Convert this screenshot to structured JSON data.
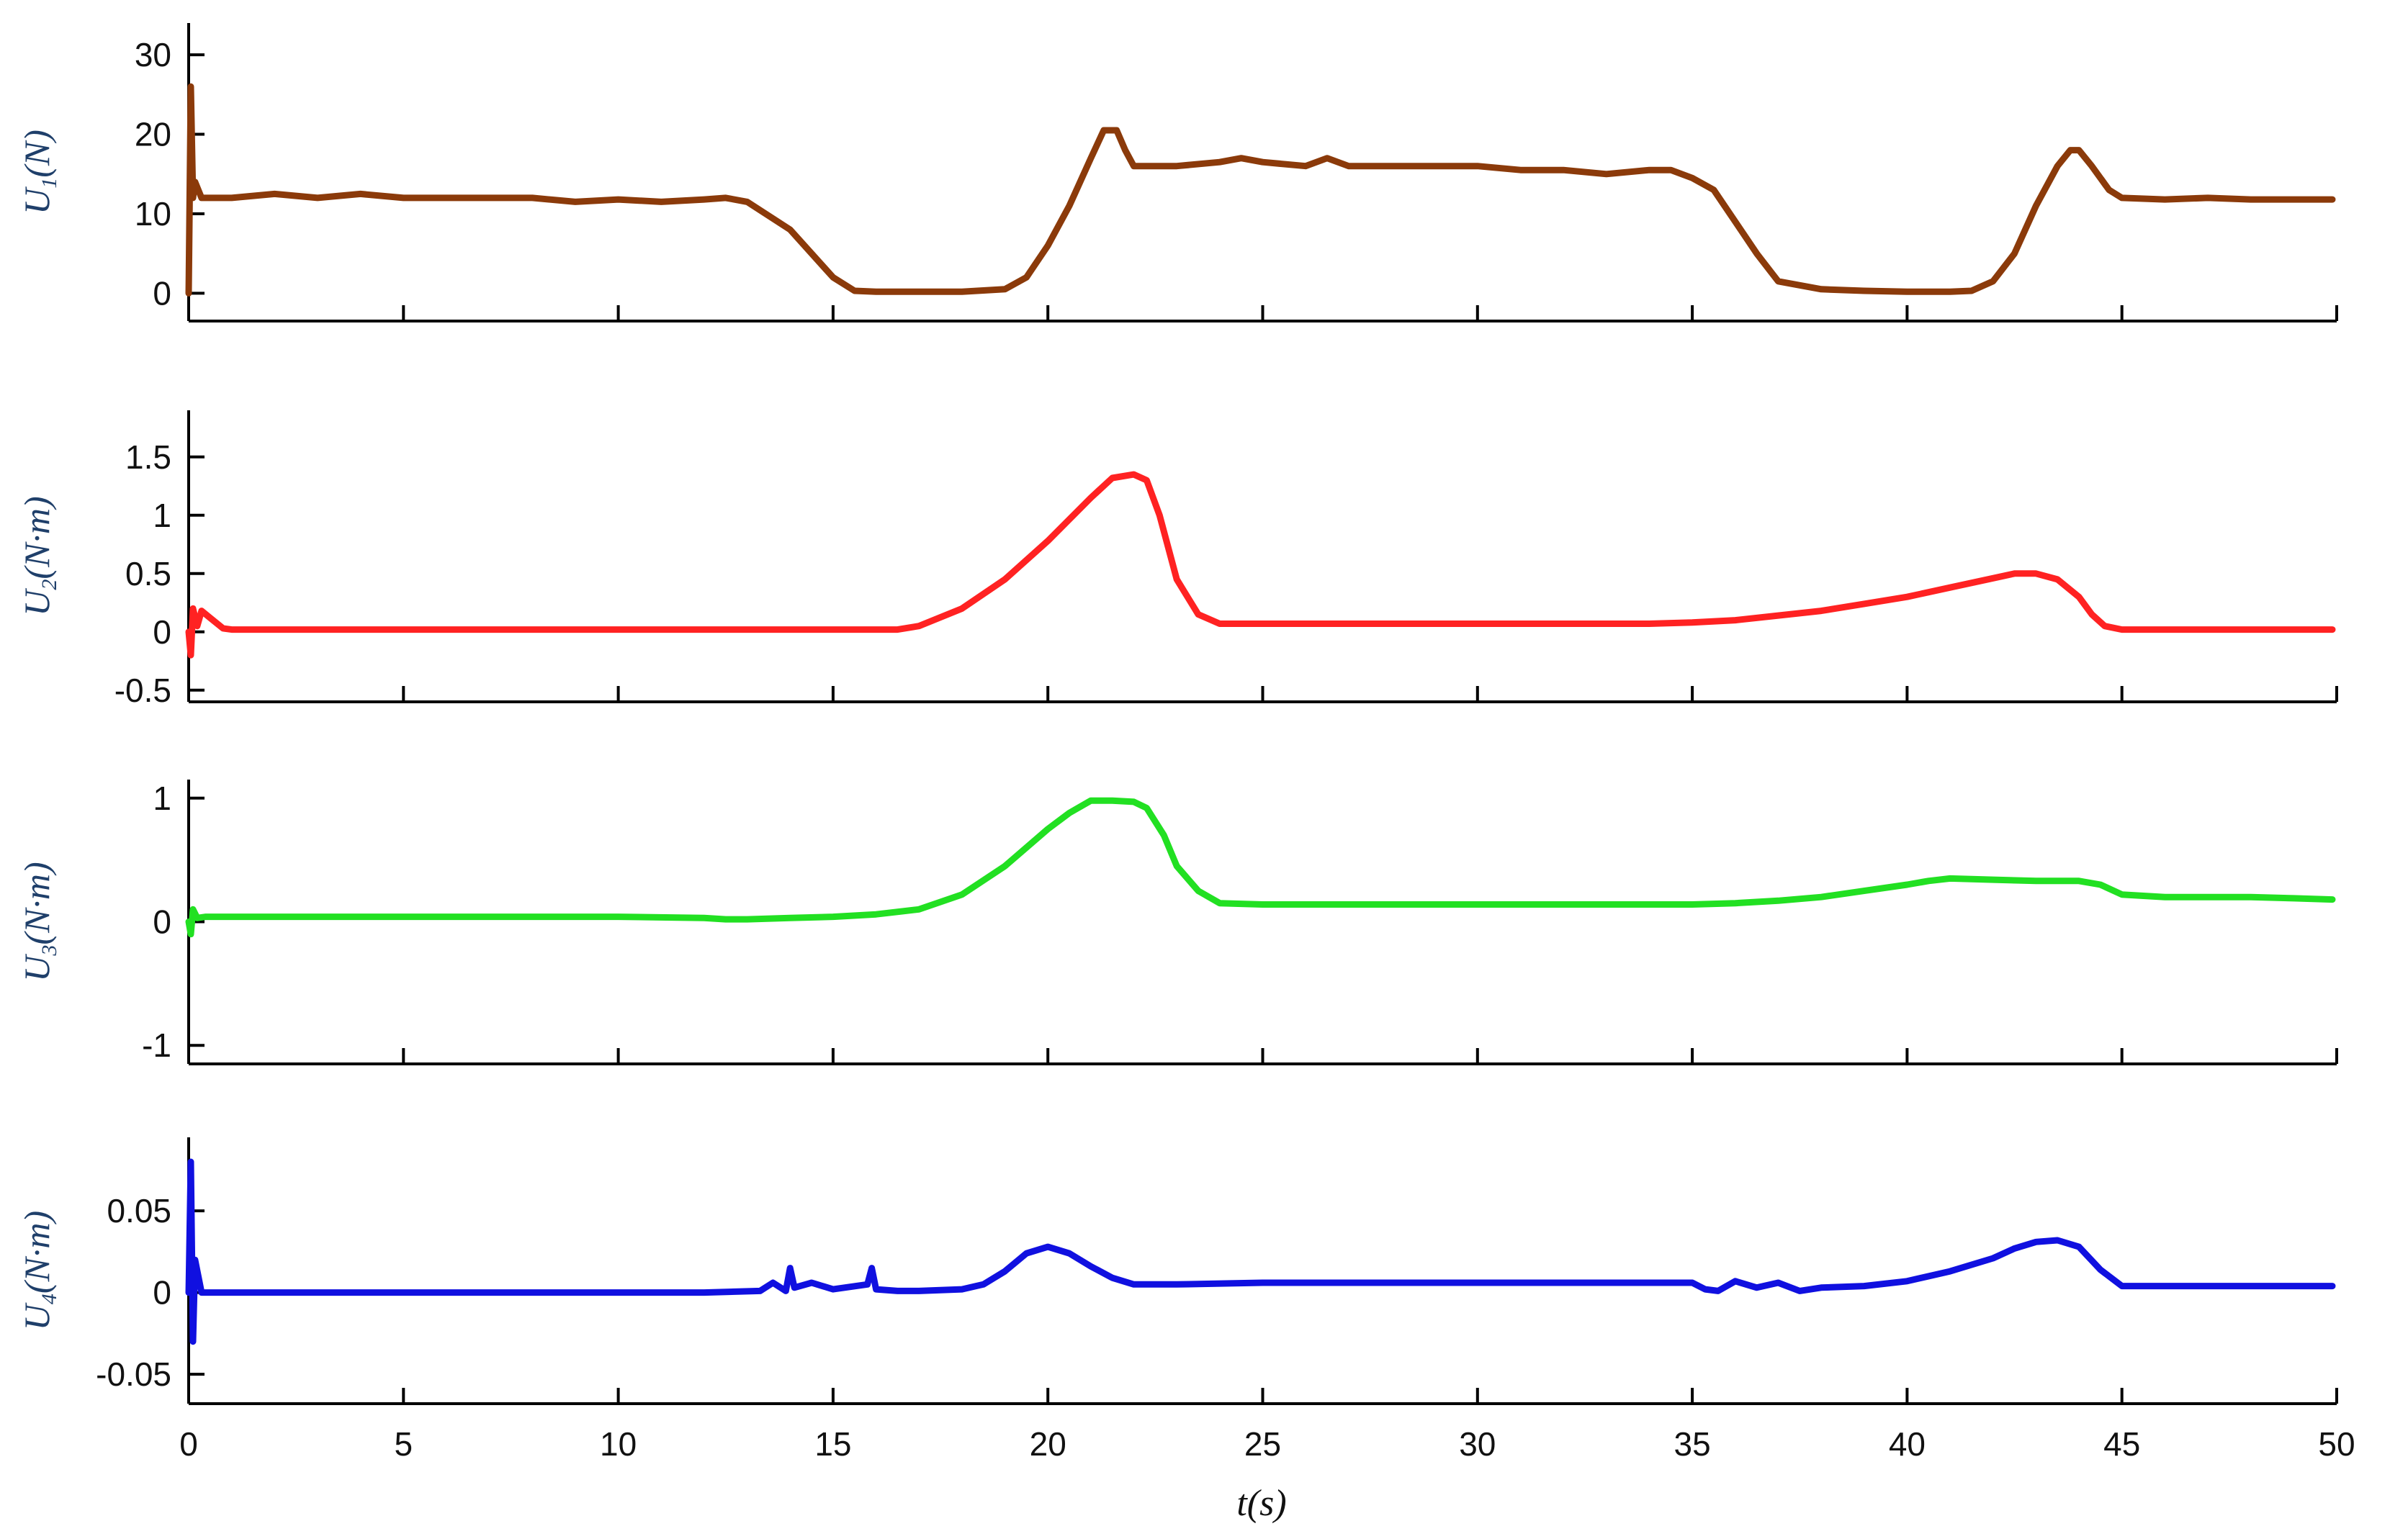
{
  "chart_data": [
    {
      "type": "line",
      "ylabel": "U1(N)",
      "ylabel_main": "U",
      "ylabel_sub": "1",
      "ylabel_unit": "(N)",
      "ylim": [
        -3.5,
        34
      ],
      "yticks": [
        0,
        10,
        20,
        30
      ],
      "ytick_labels": [
        "0",
        "10",
        "20",
        "30"
      ],
      "xlim": [
        0,
        50
      ],
      "color": "#8B3A0A",
      "x": [
        0,
        0.05,
        0.1,
        0.15,
        0.3,
        1,
        2,
        3,
        4,
        5,
        6,
        7,
        8,
        9,
        10,
        11,
        12,
        12.5,
        13,
        14,
        15,
        15.5,
        16,
        17,
        18,
        19,
        19.5,
        20,
        20.5,
        21,
        21.3,
        21.6,
        21.8,
        22,
        23,
        24,
        24.5,
        25,
        26,
        26.5,
        27,
        28,
        29,
        30,
        31,
        32,
        33,
        34,
        34.5,
        35,
        35.5,
        36,
        36.5,
        37,
        38,
        39,
        40,
        41,
        41.5,
        42,
        42.5,
        43,
        43.5,
        43.8,
        44,
        44.3,
        44.7,
        45,
        46,
        47,
        48,
        49,
        49.9
      ],
      "y": [
        0,
        26,
        12,
        14,
        12,
        12,
        12.5,
        12,
        12.5,
        12,
        12,
        12,
        12,
        11.5,
        11.8,
        11.5,
        11.8,
        12,
        11.5,
        8,
        2,
        0.3,
        0.2,
        0.2,
        0.2,
        0.5,
        2,
        6,
        11,
        17,
        20.5,
        20.5,
        18,
        16,
        16,
        16.5,
        17,
        16.5,
        16,
        17,
        16,
        16,
        16,
        16,
        15.5,
        15.5,
        15,
        15.5,
        15.5,
        14.5,
        13,
        9,
        5,
        1.5,
        0.5,
        0.3,
        0.2,
        0.2,
        0.3,
        1.5,
        5,
        11,
        16,
        18,
        18,
        16,
        13,
        12,
        11.8,
        12,
        11.8,
        11.8,
        11.8
      ]
    },
    {
      "type": "line",
      "ylabel": "U2(N·m)",
      "ylabel_main": "U",
      "ylabel_sub": "2",
      "ylabel_unit": "(N·m)",
      "ylim": [
        -0.6,
        1.9
      ],
      "yticks": [
        -0.5,
        0,
        0.5,
        1,
        1.5
      ],
      "ytick_labels": [
        "-0.5",
        "0",
        "0.5",
        "1",
        "1.5"
      ],
      "xlim": [
        0,
        50
      ],
      "color": "#FF2222",
      "x": [
        0,
        0.05,
        0.1,
        0.2,
        0.3,
        0.5,
        0.8,
        1,
        2,
        4,
        6,
        8,
        10,
        12,
        14,
        16,
        16.5,
        17,
        18,
        19,
        20,
        21,
        21.5,
        22,
        22.3,
        22.6,
        23,
        23.5,
        24,
        25,
        26,
        28,
        30,
        32,
        34,
        35,
        36,
        37,
        38,
        39,
        40,
        41,
        42,
        42.5,
        43,
        43.5,
        44,
        44.3,
        44.6,
        45,
        46,
        48,
        49.9
      ],
      "y": [
        0,
        -0.2,
        0.2,
        0.05,
        0.18,
        0.12,
        0.03,
        0.02,
        0.02,
        0.02,
        0.02,
        0.02,
        0.02,
        0.02,
        0.02,
        0.02,
        0.02,
        0.05,
        0.2,
        0.45,
        0.78,
        1.15,
        1.32,
        1.35,
        1.3,
        1.0,
        0.45,
        0.15,
        0.07,
        0.07,
        0.07,
        0.07,
        0.07,
        0.07,
        0.07,
        0.08,
        0.1,
        0.14,
        0.18,
        0.24,
        0.3,
        0.38,
        0.46,
        0.5,
        0.5,
        0.45,
        0.3,
        0.15,
        0.05,
        0.02,
        0.02,
        0.02,
        0.02
      ]
    },
    {
      "type": "line",
      "ylabel": "U3(N·m)",
      "ylabel_main": "U",
      "ylabel_sub": "3",
      "ylabel_unit": "(N·m)",
      "ylim": [
        -1.15,
        1.15
      ],
      "yticks": [
        -1,
        0,
        1
      ],
      "ytick_labels": [
        "-1",
        "0",
        "1"
      ],
      "xlim": [
        0,
        50
      ],
      "color": "#22E022",
      "x": [
        0,
        0.05,
        0.1,
        0.2,
        0.4,
        1,
        3,
        5,
        8,
        10,
        12,
        12.5,
        13,
        14,
        15,
        16,
        17,
        18,
        19,
        20,
        20.5,
        21,
        21.5,
        22,
        22.3,
        22.7,
        23,
        23.5,
        24,
        25,
        27,
        30,
        33,
        35,
        36,
        37,
        38,
        39,
        40,
        40.5,
        41,
        42,
        43,
        44,
        44.5,
        45,
        46,
        47,
        48,
        49,
        49.9
      ],
      "y": [
        0,
        -0.1,
        0.1,
        0.03,
        0.04,
        0.04,
        0.04,
        0.04,
        0.04,
        0.04,
        0.03,
        0.02,
        0.02,
        0.03,
        0.04,
        0.06,
        0.1,
        0.22,
        0.45,
        0.75,
        0.88,
        0.98,
        0.98,
        0.97,
        0.92,
        0.7,
        0.45,
        0.25,
        0.15,
        0.14,
        0.14,
        0.14,
        0.14,
        0.14,
        0.15,
        0.17,
        0.2,
        0.25,
        0.3,
        0.33,
        0.35,
        0.34,
        0.33,
        0.33,
        0.3,
        0.22,
        0.2,
        0.2,
        0.2,
        0.19,
        0.18
      ]
    },
    {
      "type": "line",
      "ylabel": "U4(N·m)",
      "ylabel_main": "U",
      "ylabel_sub": "4",
      "ylabel_unit": "(N·m)",
      "ylim": [
        -0.068,
        0.095
      ],
      "yticks": [
        -0.05,
        0,
        0.05
      ],
      "ytick_labels": [
        "-0.05",
        "0",
        "0.05"
      ],
      "xlim": [
        0,
        50
      ],
      "color": "#1010E0",
      "x": [
        0,
        0.05,
        0.1,
        0.15,
        0.3,
        1,
        3,
        5,
        8,
        10,
        12,
        13.3,
        13.6,
        13.9,
        14,
        14.1,
        14.5,
        15,
        15.8,
        15.9,
        16,
        16.5,
        17,
        18,
        18.5,
        19,
        19.5,
        20,
        20.5,
        21,
        21.5,
        22,
        23,
        25,
        27,
        30,
        33,
        35,
        35.3,
        35.6,
        36,
        36.5,
        37,
        37.5,
        38,
        39,
        40,
        41,
        42,
        42.5,
        43,
        43.5,
        44,
        44.5,
        45,
        46,
        48,
        49.9
      ],
      "y": [
        0,
        0.08,
        -0.03,
        0.02,
        0,
        0,
        0,
        0,
        0,
        0,
        0,
        0.001,
        0.006,
        0.001,
        0.015,
        0.003,
        0.006,
        0.002,
        0.005,
        0.015,
        0.002,
        0.001,
        0.001,
        0.002,
        0.005,
        0.013,
        0.024,
        0.028,
        0.024,
        0.016,
        0.009,
        0.005,
        0.005,
        0.006,
        0.006,
        0.006,
        0.006,
        0.006,
        0.002,
        0.001,
        0.007,
        0.003,
        0.006,
        0.001,
        0.003,
        0.004,
        0.007,
        0.013,
        0.021,
        0.027,
        0.031,
        0.032,
        0.028,
        0.014,
        0.004,
        0.004,
        0.004,
        0.004
      ]
    }
  ],
  "xaxis": {
    "xlim": [
      0,
      50
    ],
    "xticks": [
      0,
      5,
      10,
      15,
      20,
      25,
      30,
      35,
      40,
      45,
      50
    ],
    "xtick_labels": [
      "0",
      "5",
      "10",
      "15",
      "20",
      "25",
      "30",
      "35",
      "40",
      "45",
      "50"
    ],
    "xlabel": "t(s)",
    "xlabel_main": "t",
    "xlabel_unit": "(s)"
  }
}
